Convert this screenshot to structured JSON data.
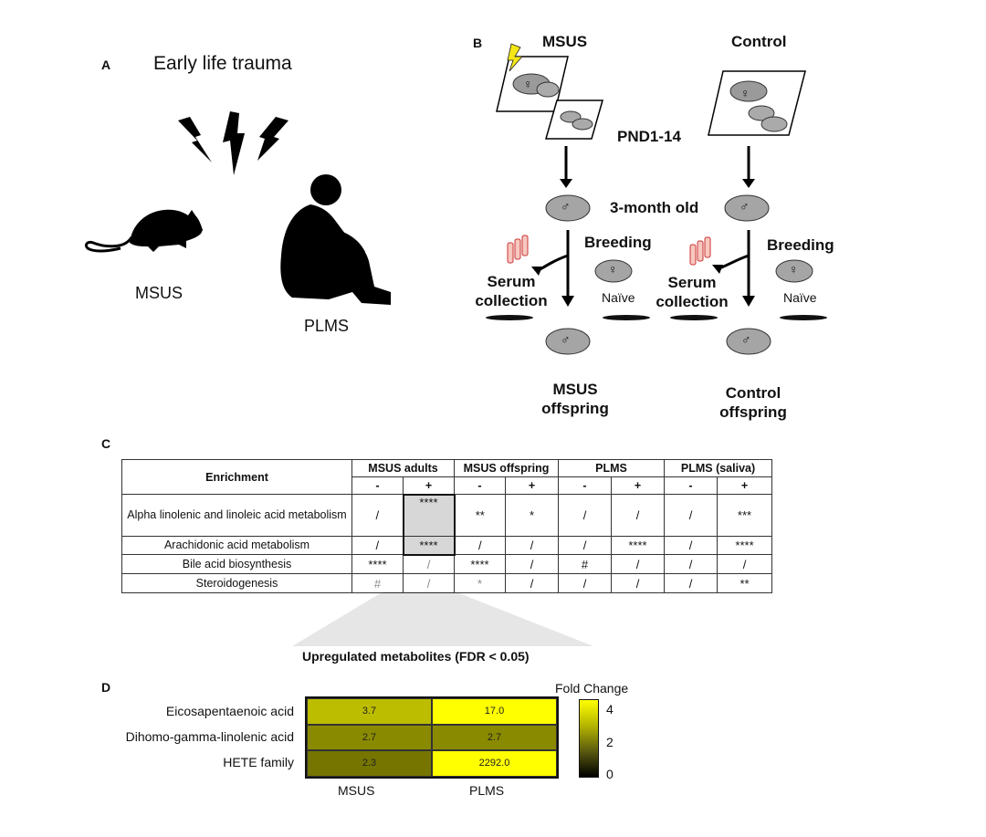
{
  "panel_a": {
    "letter": "A",
    "title": "Early life trauma",
    "mouse_label": "MSUS",
    "human_label": "PLMS",
    "icons": [
      "lightning-bolt-icon",
      "mouse-silhouette-icon",
      "sitting-child-silhouette-icon"
    ]
  },
  "panel_b": {
    "letter": "B",
    "msus_title": "MSUS",
    "control_title": "Control",
    "pnd": "PND1-14",
    "age": "3-month old",
    "breeding": "Breeding",
    "serum_line1": "Serum",
    "serum_line2": "collection",
    "naive": "Naïve",
    "msus_offspring_line1": "MSUS",
    "msus_offspring_line2": "offspring",
    "control_offspring_line1": "Control",
    "control_offspring_line2": "offspring",
    "female_symbol": "♀",
    "male_symbol": "♂"
  },
  "panel_c": {
    "letter": "C",
    "header_enrichment": "Enrichment",
    "groups": [
      "MSUS adults",
      "MSUS offspring",
      "PLMS",
      "PLMS (saliva)"
    ],
    "signs": [
      "-",
      "+",
      "-",
      "+",
      "-",
      "+",
      "-",
      "+"
    ],
    "rows": [
      {
        "label": "Alpha linolenic and linoleic acid metabolism",
        "cells": [
          "/",
          "****",
          "**",
          "*",
          "/",
          "/",
          "/",
          "***"
        ]
      },
      {
        "label": "Arachidonic acid metabolism",
        "cells": [
          "/",
          "****",
          "/",
          "/",
          "/",
          "****",
          "/",
          "****"
        ]
      },
      {
        "label": "Bile acid biosynthesis",
        "cells": [
          "****",
          "/",
          "****",
          "/",
          "#",
          "/",
          "/",
          "/"
        ]
      },
      {
        "label": "Steroidogenesis",
        "cells": [
          "#",
          "/",
          "*",
          "/",
          "/",
          "/",
          "/",
          "**"
        ]
      }
    ],
    "caption": "Upregulated metabolites (FDR < 0.05)"
  },
  "panel_d": {
    "letter": "D",
    "chart_data": {
      "type": "heatmap",
      "rows": [
        "Eicosapentaenoic acid",
        "Dihomo-gamma-linolenic acid",
        "HETE family"
      ],
      "columns": [
        "MSUS",
        "PLMS"
      ],
      "values": [
        [
          3.7,
          17.0
        ],
        [
          2.7,
          2.7
        ],
        [
          2.3,
          2292.0
        ]
      ],
      "value_labels": [
        [
          "3.7",
          "17.0"
        ],
        [
          "2.7",
          "2.7"
        ],
        [
          "2.3",
          "2292.0"
        ]
      ],
      "colorbar_title": "Fold Change",
      "colorbar_ticks": [
        "4",
        "2",
        "0"
      ],
      "colorbar_range": [
        0,
        5
      ],
      "colormap": [
        "#000000",
        "#ffff00"
      ]
    }
  }
}
